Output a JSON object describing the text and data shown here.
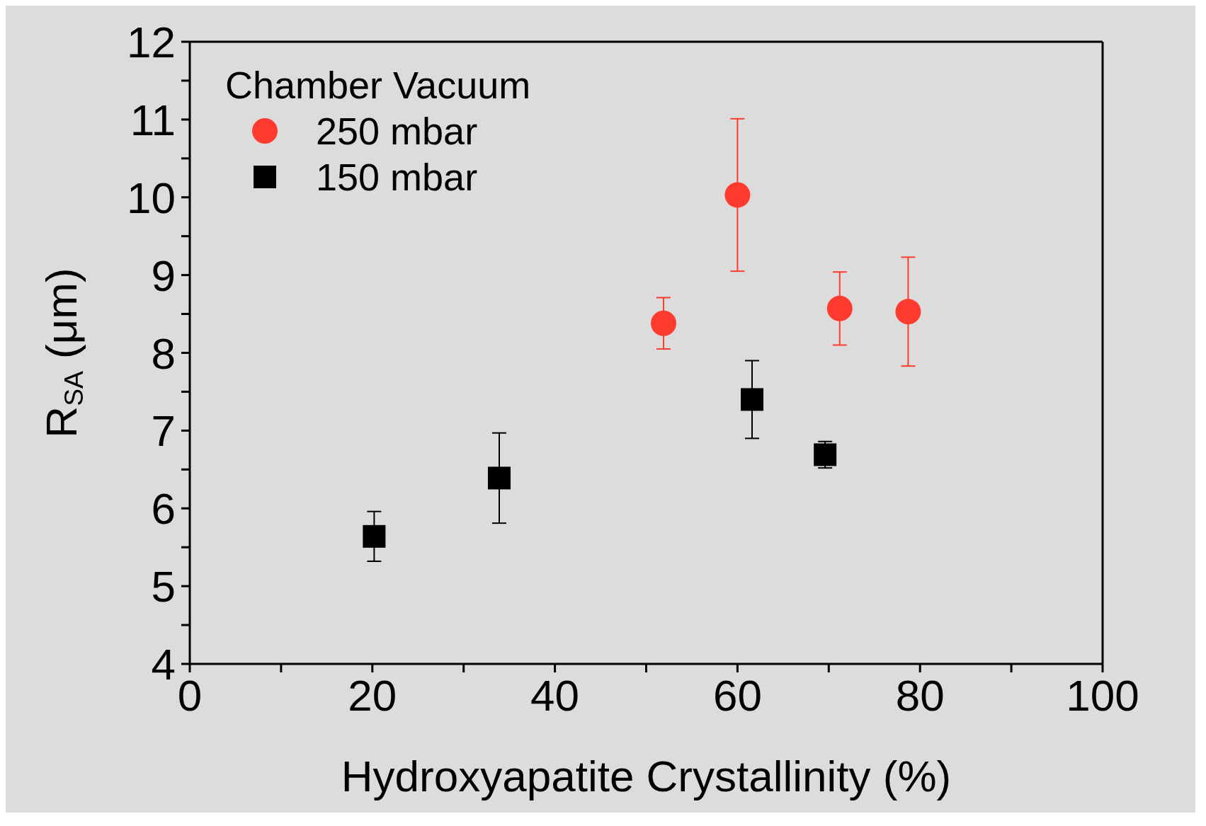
{
  "chart_data": {
    "type": "scatter",
    "xlabel": "Hydroxyapatite Crystallinity (%)",
    "ylabel": "R$_{SA}$ (μm)",
    "legend_title": "Chamber Vacuum",
    "legend": "top left",
    "grid": false,
    "xlim": [
      0,
      100
    ],
    "xticks": [
      0,
      {
        "value": 10,
        "label": null
      },
      20,
      {
        "value": 30,
        "label": null
      },
      40,
      {
        "value": 50,
        "label": null
      },
      60,
      {
        "value": 70,
        "label": null
      },
      80,
      {
        "value": 90,
        "label": null
      },
      100
    ],
    "ylim": [
      4,
      12
    ],
    "yticks": [
      4,
      {
        "value": 4.5,
        "label": null
      },
      5,
      {
        "value": 5.5,
        "label": null
      },
      6,
      {
        "value": 6.5,
        "label": null
      },
      7,
      {
        "value": 7.5,
        "label": null
      },
      8,
      {
        "value": 8.5,
        "label": null
      },
      9,
      {
        "value": 9.5,
        "label": null
      },
      10,
      {
        "value": 10.5,
        "label": null
      },
      11,
      {
        "value": 11.5,
        "label": null
      },
      12
    ],
    "series": [
      {
        "name": "250 mbar",
        "color": "#ff3b30",
        "marker": "circle",
        "x": [
          51.9,
          60.0,
          71.2,
          78.7
        ],
        "values": [
          8.38,
          10.03,
          8.57,
          8.53
        ],
        "errors": [
          0.33,
          0.98,
          0.47,
          0.7
        ]
      },
      {
        "name": "150 mbar",
        "color": "#000000",
        "marker": "square",
        "x": [
          20.2,
          33.9,
          61.6,
          69.6
        ],
        "values": [
          5.64,
          6.39,
          7.4,
          6.69
        ],
        "errors": [
          0.32,
          0.58,
          0.5,
          0.17
        ]
      }
    ]
  }
}
